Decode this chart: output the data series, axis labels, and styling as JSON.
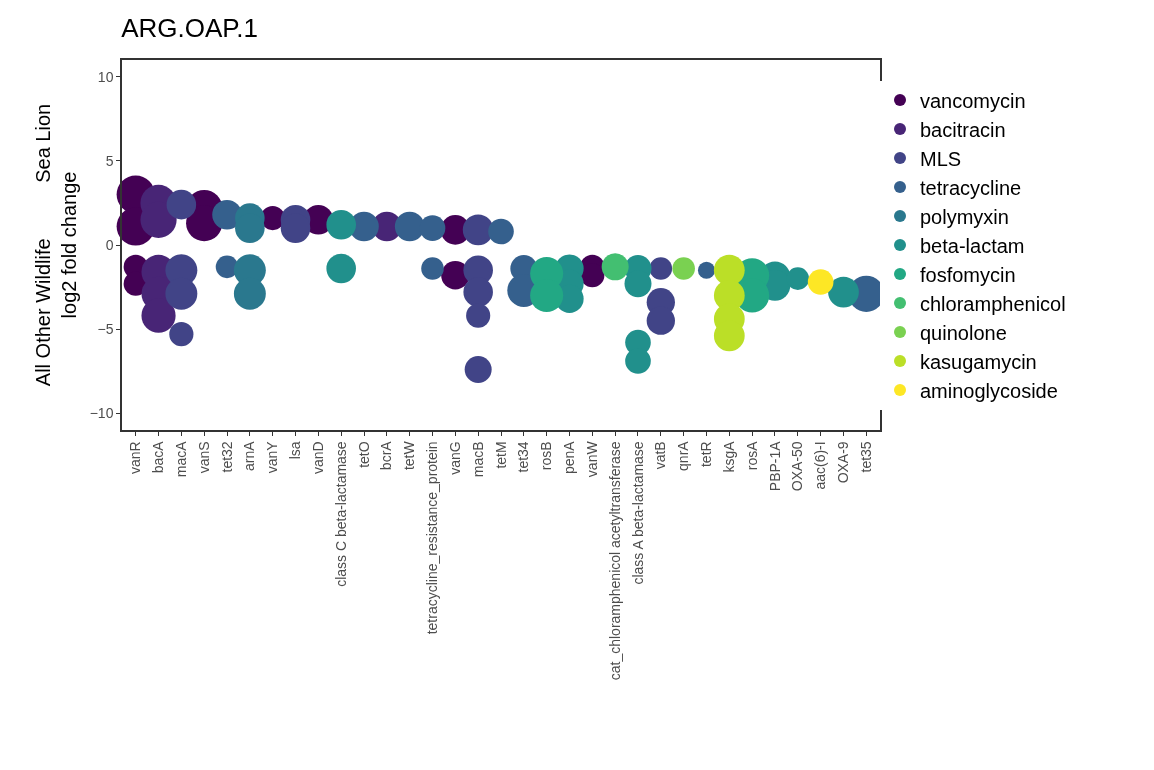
{
  "chart_data": {
    "type": "bubble",
    "title": "ARG.OAP.1",
    "ylabel": "All Other Wildlife          Sea Lion\nlog2 fold change",
    "categories": [
      "vanR",
      "bacA",
      "macA",
      "vanS",
      "tet32",
      "arnA",
      "vanY",
      "lsa",
      "vanD",
      "class C beta-lactamase",
      "tetO",
      "bcrA",
      "tetW",
      "tetracycline_resistance_protein",
      "vanG",
      "macB",
      "tetM",
      "tet34",
      "rosB",
      "penA",
      "vanW",
      "cat_chloramphenicol acetyltransferase",
      "class A beta-lactamase",
      "vatB",
      "qnrA",
      "tetR",
      "ksgA",
      "rosA",
      "PBP-1A",
      "OXA-50",
      "aac(6)-I",
      "OXA-9",
      "tet35"
    ],
    "ylim": [
      -11,
      11
    ],
    "yticks": [
      -10,
      -5,
      0,
      5,
      10
    ],
    "grid": false,
    "legend": "right",
    "series": [
      {
        "name": "vancomycin",
        "color": "#440154",
        "x": [
          "vanR",
          "vanR",
          "vanR",
          "vanR",
          "vanS",
          "vanS",
          "vanY",
          "vanD",
          "vanG",
          "vanG",
          "vanW",
          "vanW"
        ],
        "values": [
          3.0,
          1.1,
          -1.3,
          -2.3,
          2.2,
          1.3,
          1.6,
          1.5,
          0.9,
          -1.8,
          -1.3,
          -1.8
        ],
        "sizes": [
          1,
          1,
          0.4,
          0.4,
          0.9,
          0.9,
          0.4,
          0.6,
          0.6,
          0.55,
          0.4,
          0.4
        ]
      },
      {
        "name": "bacitracin",
        "color": "#482576",
        "x": [
          "bacA",
          "bacA",
          "bacA",
          "bacA",
          "bacA",
          "bcrA"
        ],
        "values": [
          2.5,
          1.5,
          -1.6,
          -2.9,
          -4.2,
          1.1
        ],
        "sizes": [
          0.9,
          0.9,
          0.8,
          0.8,
          0.8,
          0.6
        ]
      },
      {
        "name": "MLS",
        "color": "#414487",
        "x": [
          "macA",
          "macA",
          "macA",
          "macA",
          "lsa",
          "lsa",
          "macB",
          "macB",
          "macB",
          "macB",
          "macB",
          "vatB",
          "vatB",
          "vatB"
        ],
        "values": [
          2.4,
          -1.5,
          -2.9,
          -5.3,
          1.5,
          1.0,
          0.9,
          -1.5,
          -2.8,
          -4.2,
          -7.4,
          -1.4,
          -3.4,
          -4.5
        ],
        "sizes": [
          0.6,
          0.7,
          0.7,
          0.4,
          0.6,
          0.6,
          0.65,
          0.6,
          0.6,
          0.4,
          0.5,
          0.35,
          0.55,
          0.55
        ]
      },
      {
        "name": "tetracycline",
        "color": "#35608D",
        "x": [
          "tet32",
          "tet32",
          "tetO",
          "tetW",
          "tetracycline_resistance_protein",
          "tetracycline_resistance_protein",
          "tetM",
          "tet34",
          "tet34",
          "tetR",
          "tet35"
        ],
        "values": [
          1.8,
          -1.3,
          1.1,
          1.1,
          1.0,
          -1.4,
          0.8,
          -1.4,
          -2.7,
          -1.5,
          -2.9
        ],
        "sizes": [
          0.6,
          0.35,
          0.6,
          0.6,
          0.45,
          0.35,
          0.45,
          0.5,
          0.75,
          0.2,
          0.9
        ]
      },
      {
        "name": "polymyxin",
        "color": "#2A788E",
        "x": [
          "arnA",
          "arnA",
          "arnA",
          "arnA"
        ],
        "values": [
          1.6,
          1.0,
          -1.5,
          -2.9
        ],
        "sizes": [
          0.6,
          0.6,
          0.7,
          0.7
        ]
      },
      {
        "name": "beta-lactam",
        "color": "#21908C",
        "x": [
          "class C beta-lactamase",
          "class C beta-lactamase",
          "penA",
          "penA",
          "penA",
          "class A beta-lactamase",
          "class A beta-lactamase",
          "class A beta-lactamase",
          "class A beta-lactamase",
          "PBP-1A",
          "PBP-1A",
          "OXA-50",
          "OXA-9"
        ],
        "values": [
          1.2,
          -1.4,
          -1.4,
          -2.3,
          -3.2,
          -1.4,
          -2.3,
          -5.8,
          -6.9,
          -1.9,
          -2.4,
          -2.0,
          -2.8
        ],
        "sizes": [
          0.6,
          0.6,
          0.55,
          0.55,
          0.55,
          0.5,
          0.5,
          0.45,
          0.45,
          0.65,
          0.65,
          0.35,
          0.65
        ]
      },
      {
        "name": "fosfomycin",
        "color": "#22A884",
        "x": [
          "rosB",
          "rosB",
          "rosA",
          "rosA"
        ],
        "values": [
          -1.7,
          -3.0,
          -1.8,
          -3.0
        ],
        "sizes": [
          0.75,
          0.75,
          0.8,
          0.8
        ]
      },
      {
        "name": "chloramphenicol",
        "color": "#43BF71",
        "x": [
          "cat_chloramphenicol acetyltransferase"
        ],
        "values": [
          -1.3
        ],
        "sizes": [
          0.5
        ]
      },
      {
        "name": "quinolone",
        "color": "#7AD151",
        "x": [
          "qnrA"
        ],
        "values": [
          -1.4
        ],
        "sizes": [
          0.35
        ]
      },
      {
        "name": "kasugamycin",
        "color": "#BBDF27",
        "x": [
          "ksgA",
          "ksgA",
          "ksgA",
          "ksgA"
        ],
        "values": [
          -1.5,
          -3.0,
          -4.4,
          -5.4
        ],
        "sizes": [
          0.65,
          0.65,
          0.65,
          0.65
        ]
      },
      {
        "name": "aminoglycoside",
        "color": "#FDE725",
        "x": [
          "aac(6)-I"
        ],
        "values": [
          -2.2
        ],
        "sizes": [
          0.45
        ]
      }
    ]
  }
}
